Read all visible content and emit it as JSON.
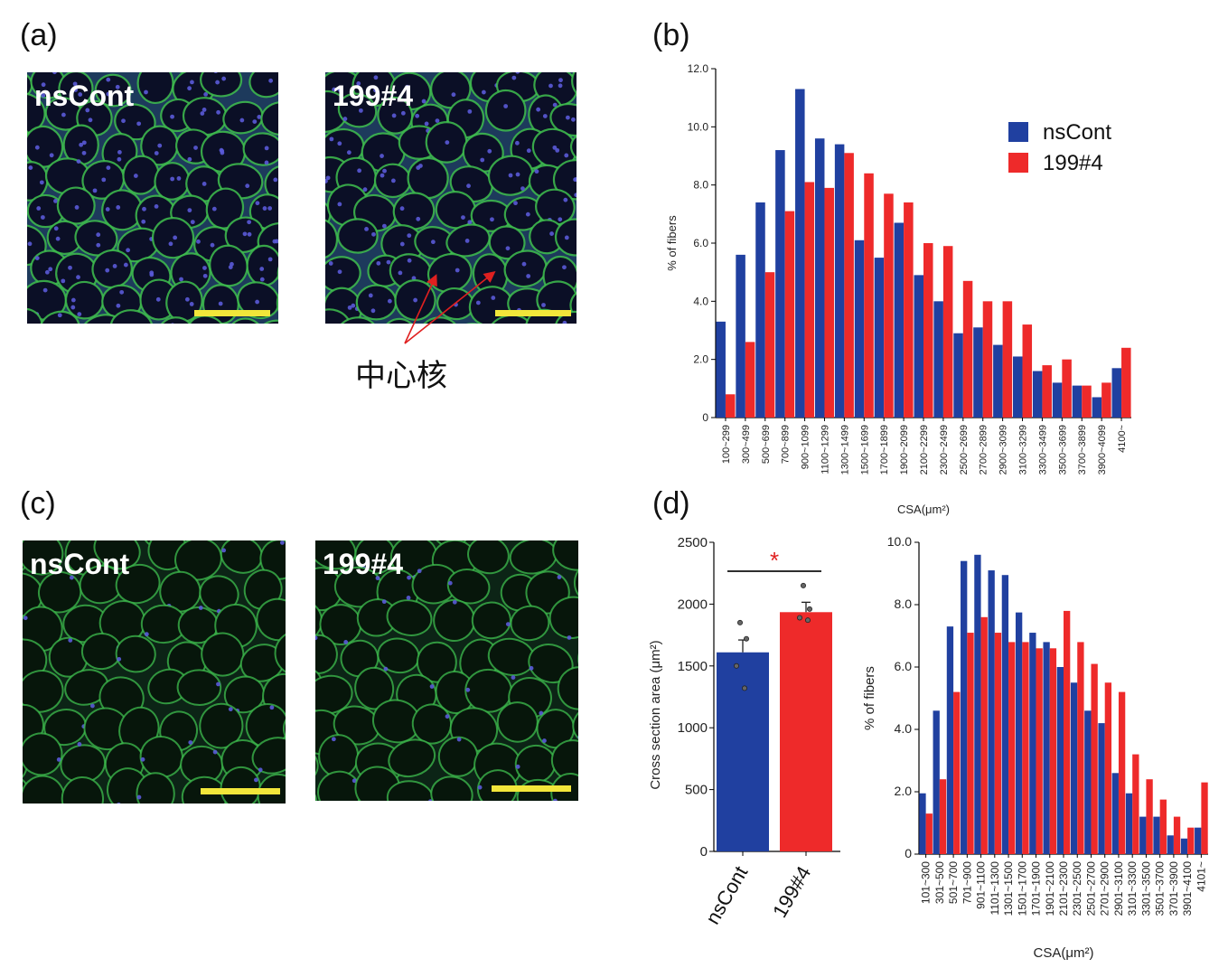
{
  "panels": {
    "a": {
      "label": "(a)",
      "images": [
        {
          "label": "nsCont"
        },
        {
          "label": "199#4"
        }
      ],
      "annotation": "中心核"
    },
    "b": {
      "label": "(b)"
    },
    "c": {
      "label": "(c)",
      "images": [
        {
          "label": "nsCont"
        },
        {
          "label": "199#4"
        }
      ]
    },
    "d": {
      "label": "(d)"
    }
  },
  "colors": {
    "nsCont": "#2040a0",
    "199#4": "#ee2a2a",
    "membrane": "#3fbf4f",
    "nuclei": "#5a5ad8",
    "scalebar": "#f2e63a"
  },
  "chart_data": [
    {
      "id": "b",
      "type": "bar",
      "ylabel": "% of fibers",
      "xlabel": "CSA(μm²)",
      "ylim": [
        0,
        12
      ],
      "yticks": [
        "0",
        "2.0",
        "4.0",
        "6.0",
        "8.0",
        "10.0",
        "12.0"
      ],
      "legend": "top-right",
      "categories": [
        "100~299",
        "300~499",
        "500~699",
        "700~899",
        "900~1099",
        "1100~1299",
        "1300~1499",
        "1500~1699",
        "1700~1899",
        "1900~2099",
        "2100~2299",
        "2300~2499",
        "2500~2699",
        "2700~2899",
        "2900~3099",
        "3100~3299",
        "3300~3499",
        "3500~3699",
        "3700~3899",
        "3900~4099",
        "4100~"
      ],
      "series": [
        {
          "name": "nsCont",
          "values": [
            3.3,
            5.6,
            7.4,
            9.2,
            11.3,
            9.6,
            9.4,
            6.1,
            5.5,
            6.7,
            4.9,
            4.0,
            2.9,
            3.1,
            2.5,
            2.1,
            1.6,
            1.2,
            1.1,
            0.7,
            1.7
          ]
        },
        {
          "name": "199#4",
          "values": [
            0.8,
            2.6,
            5.0,
            7.1,
            8.1,
            7.9,
            9.1,
            8.4,
            7.7,
            7.4,
            6.0,
            5.9,
            4.7,
            4.0,
            4.0,
            3.2,
            1.8,
            2.0,
            1.1,
            1.2,
            2.4
          ]
        }
      ]
    },
    {
      "id": "d-left",
      "type": "bar",
      "ylabel": "Cross section area (μm²)",
      "ylim": [
        0,
        2500
      ],
      "yticks": [
        "0",
        "500",
        "1000",
        "1500",
        "2000",
        "2500"
      ],
      "categories": [
        "nsCont",
        "199#4"
      ],
      "values": [
        1610,
        1935
      ],
      "errors": [
        100,
        80
      ],
      "points": [
        [
          1850,
          1720,
          1500,
          1320
        ],
        [
          2150,
          1960,
          1890,
          1870
        ]
      ],
      "significance": "*"
    },
    {
      "id": "d-right",
      "type": "bar",
      "ylabel": "% of fibers",
      "xlabel": "CSA(μm²)",
      "ylim": [
        0,
        10
      ],
      "yticks": [
        "0",
        "2.0",
        "4.0",
        "6.0",
        "8.0",
        "10.0"
      ],
      "categories": [
        "101~300",
        "301~500",
        "501~700",
        "701~900",
        "901~1100",
        "1101~1300",
        "1301~1500",
        "1501~1700",
        "1701~1900",
        "1901~2100",
        "2101~2300",
        "2301~2500",
        "2501~2700",
        "2701~2900",
        "2901~3100",
        "3101~3300",
        "3301~3500",
        "3501~3700",
        "3701~3900",
        "3901~4100",
        "4101~"
      ],
      "series": [
        {
          "name": "nsCont",
          "values": [
            1.95,
            4.6,
            7.3,
            9.4,
            9.6,
            9.1,
            8.95,
            7.75,
            7.1,
            6.8,
            6.0,
            5.5,
            4.6,
            4.2,
            2.6,
            1.95,
            1.2,
            1.2,
            0.6,
            0.5,
            0.85
          ]
        },
        {
          "name": "199#4",
          "values": [
            1.3,
            2.4,
            5.2,
            7.1,
            7.6,
            7.1,
            6.8,
            6.8,
            6.6,
            6.6,
            7.8,
            6.8,
            6.1,
            5.5,
            5.2,
            3.2,
            2.4,
            1.75,
            1.2,
            0.85,
            2.3
          ]
        }
      ]
    }
  ]
}
